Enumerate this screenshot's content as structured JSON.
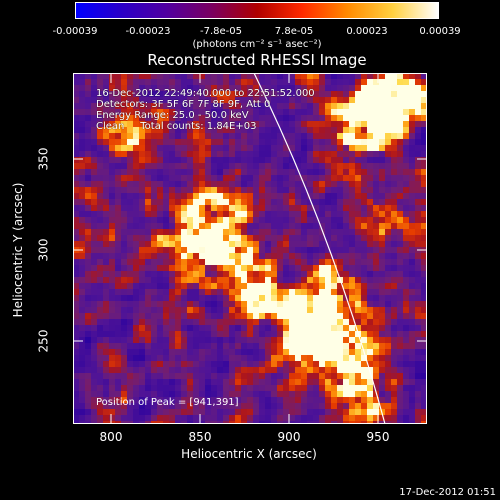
{
  "colorbar": {
    "ticks": [
      "-0.00039",
      "-0.00023",
      "-7.8e-05",
      "7.8e-05",
      "0.00023",
      "0.00039"
    ],
    "units": "(photons cm⁻² s⁻¹ asec⁻²)",
    "colors": [
      "#0000ff",
      "#2a00c8",
      "#5000a0",
      "#7a0060",
      "#b00000",
      "#ff2a00",
      "#ff8a00",
      "#ffd040",
      "#ffffff"
    ]
  },
  "title": "Reconstructed RHESSI Image",
  "info": {
    "time": "16-Dec-2012 22:49:40.000 to 22:51:52.000",
    "detectors": "Detectors: 3F 5F 6F 7F 8F 9F, Att 0",
    "energy": "Energy Range: 25.0 - 50.0 keV",
    "clean": "Clean     Total counts: 1.84E+03"
  },
  "peak": "Position of Peak = [941,391]",
  "x_axis": {
    "label": "Heliocentric X (arcsec)",
    "ticks": [
      "800",
      "850",
      "900",
      "950"
    ]
  },
  "y_axis": {
    "label": "Heliocentric Y (arcsec)",
    "ticks": [
      "250",
      "300",
      "350"
    ]
  },
  "timestamp": "17-Dec-2012 01:51"
}
